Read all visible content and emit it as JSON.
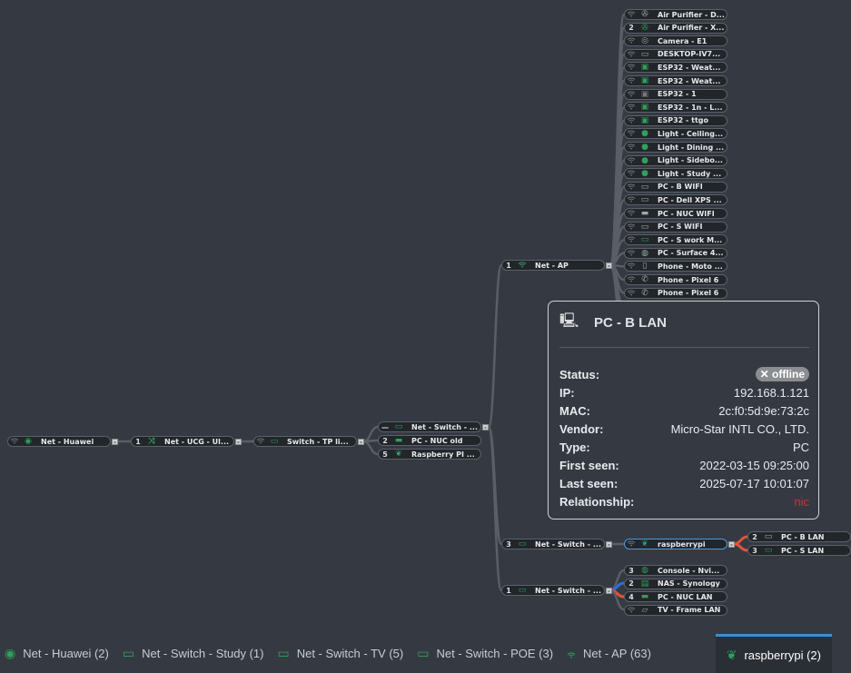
{
  "colors": {
    "accent": "#3a8fd0",
    "online": "#2fa05a",
    "edge": "#5a5f66",
    "edge_red": "#e0533a",
    "edge_blue": "#2a6fdb",
    "offline": "#8a8d91",
    "relationship": "#d0302b"
  },
  "tree": {
    "root": {
      "label": "Net - Huawei",
      "badge": "",
      "icon": "globe-icon",
      "wifi": true
    },
    "ucg": {
      "label": "Net - UCG - Ul...",
      "badge": "1",
      "icon": "shuffle-icon"
    },
    "tp": {
      "label": "Switch - TP li...",
      "badge": "",
      "icon": "switch-icon",
      "wifi": true
    },
    "tp_children": [
      {
        "label": "Net - Switch - ...",
        "badge": "—",
        "icon": "switch-icon"
      },
      {
        "label": "PC - NUC old",
        "badge": "2",
        "icon": "nuc-icon"
      },
      {
        "label": "Raspberry PI ...",
        "badge": "5",
        "icon": "raspberry-icon"
      }
    ],
    "ap": {
      "label": "Net - AP",
      "badge": "1",
      "icon": "wifi-icon"
    },
    "ap_children": [
      {
        "label": "Air Purifier - D...",
        "badge": "",
        "icon": "fan-icon",
        "color": "#9aa"
      },
      {
        "label": "Air Purifier - X...",
        "badge": "2",
        "icon": "fan-icon",
        "color": "#2fa05a"
      },
      {
        "label": "Camera - E1",
        "badge": "",
        "icon": "camera-icon",
        "color": "#9aa"
      },
      {
        "label": "DESKTOP-IV7...",
        "badge": "",
        "icon": "monitor-icon",
        "color": "#9aa"
      },
      {
        "label": "ESP32 - Weat...",
        "badge": "",
        "icon": "chip-icon",
        "color": "#2fa05a"
      },
      {
        "label": "ESP32 - Weat...",
        "badge": "",
        "icon": "chip-icon",
        "color": "#2fa05a"
      },
      {
        "label": "ESP32 - 1",
        "badge": "",
        "icon": "chip-icon",
        "color": "#777"
      },
      {
        "label": "ESP32 - 1n - L...",
        "badge": "",
        "icon": "chip-icon",
        "color": "#2fa05a"
      },
      {
        "label": "ESP32 - ttgo",
        "badge": "",
        "icon": "chip-icon",
        "color": "#2fa05a"
      },
      {
        "label": "Light - Ceiling...",
        "badge": "",
        "icon": "bulb-icon",
        "color": "#2fa05a"
      },
      {
        "label": "Light - Dining ...",
        "badge": "",
        "icon": "bulb-icon",
        "color": "#2fa05a"
      },
      {
        "label": "Light - Sidebo...",
        "badge": "",
        "icon": "bulb-icon",
        "color": "#2fa05a"
      },
      {
        "label": "Light - Study ...",
        "badge": "",
        "icon": "bulb-icon",
        "color": "#2fa05a"
      },
      {
        "label": "PC - B WIFI",
        "badge": "",
        "icon": "desktop-icon",
        "color": "#9aa"
      },
      {
        "label": "PC - Dell XPS ...",
        "badge": "",
        "icon": "monitor-icon",
        "color": "#9aa"
      },
      {
        "label": "PC - NUC WIFI",
        "badge": "",
        "icon": "nuc-icon",
        "color": "#9aa"
      },
      {
        "label": "PC - S WIFI",
        "badge": "",
        "icon": "desktop-icon",
        "color": "#9aa"
      },
      {
        "label": "PC - S work M...",
        "badge": "",
        "icon": "monitor-icon",
        "color": "#2fa05a"
      },
      {
        "label": "PC - Surface 4...",
        "badge": "",
        "icon": "gamepad-icon",
        "color": "#9aa"
      },
      {
        "label": "Phone - Moto ...",
        "badge": "",
        "icon": "phone-icon",
        "color": "#9aa"
      },
      {
        "label": "Phone - Pixel 6",
        "badge": "",
        "icon": "phone-handset-icon",
        "color": "#9aa"
      },
      {
        "label": "Phone - Pixel 6",
        "badge": "",
        "icon": "phone-handset-icon",
        "color": "#9aa"
      }
    ],
    "sw3": {
      "label": "Net - Switch - ...",
      "badge": "3",
      "icon": "switch-icon"
    },
    "rpi": {
      "label": "raspberrypi",
      "badge": "",
      "icon": "raspberry-icon",
      "wifi": true
    },
    "rpi_children": [
      {
        "label": "PC - B LAN",
        "badge": "2",
        "icon": "desktop-icon",
        "color": "#9aa"
      },
      {
        "label": "PC - S LAN",
        "badge": "3",
        "icon": "desktop-icon",
        "color": "#2fa05a"
      }
    ],
    "sw1": {
      "label": "Net - Switch - ...",
      "badge": "1",
      "icon": "switch-icon"
    },
    "sw1_children": [
      {
        "label": "Console - Nvi...",
        "badge": "3",
        "icon": "gamepad-icon",
        "color": "#2fa05a"
      },
      {
        "label": "NAS - Synology",
        "badge": "2",
        "icon": "nas-icon",
        "color": "#2fa05a"
      },
      {
        "label": "PC - NUC LAN",
        "badge": "4",
        "icon": "nuc-icon",
        "color": "#2fa05a"
      },
      {
        "label": "TV - Frame LAN",
        "badge": "",
        "icon": "tv-icon",
        "color": "#9aa",
        "wifi": true
      }
    ]
  },
  "tooltip": {
    "icon": "desktop-icon",
    "title": "PC - B LAN",
    "rows": [
      {
        "key": "Status:",
        "value": "✕ offline",
        "kind": "pill"
      },
      {
        "key": "IP:",
        "value": "192.168.1.121"
      },
      {
        "key": "MAC:",
        "value": "2c:f0:5d:9e:73:2c"
      },
      {
        "key": "Vendor:",
        "value": "Micro-Star INTL CO., LTD."
      },
      {
        "key": "Type:",
        "value": "PC"
      },
      {
        "key": "First seen:",
        "value": "2022-03-15 09:25:00"
      },
      {
        "key": "Last seen:",
        "value": "2025-07-17 10:01:07"
      },
      {
        "key": "Relationship:",
        "value": "nic",
        "kind": "rel"
      }
    ]
  },
  "tabs": [
    {
      "label": "Net - Huawei (2)",
      "icon": "globe-icon"
    },
    {
      "label": "Net - Switch - Study (1)",
      "icon": "switch-icon"
    },
    {
      "label": "Net - Switch - TV (5)",
      "icon": "switch-icon"
    },
    {
      "label": "Net - Switch - POE (3)",
      "icon": "switch-icon"
    },
    {
      "label": "Net - AP (63)",
      "icon": "wifi-icon"
    },
    {
      "label": "raspberrypi (2)",
      "icon": "raspberry-icon",
      "active": true
    }
  ]
}
